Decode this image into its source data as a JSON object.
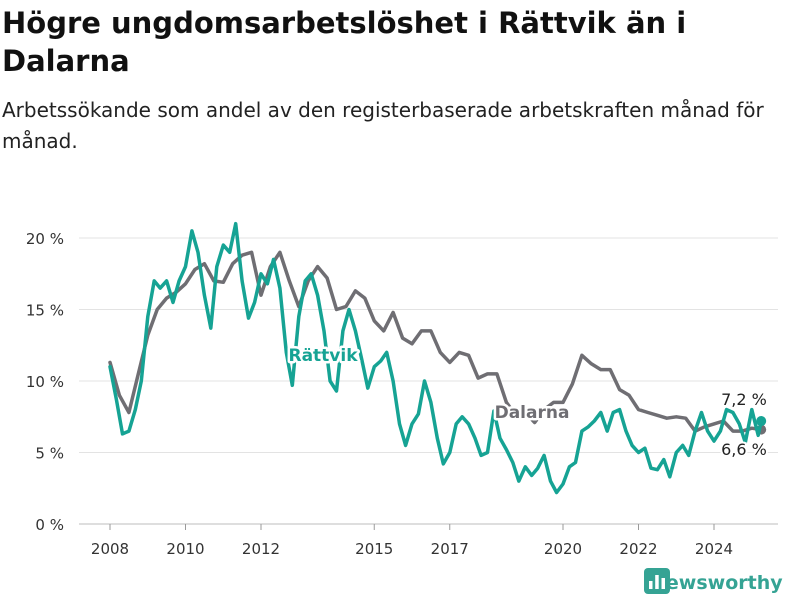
{
  "title": "Högre ungdomsarbetslöshet i Rättvik än i Dalarna",
  "subtitle": "Arbetssökande som andel av den registerbaserade arbetskraften månad för månad.",
  "brand": {
    "label": "Newsworthy",
    "icon": "bar-chart-logo-icon",
    "color": "#35a394"
  },
  "chart_data": {
    "type": "line",
    "xlim": [
      2007.58,
      2025.75
    ],
    "ylim": [
      0,
      20
    ],
    "y_ticks": [
      0,
      5,
      10,
      15,
      20
    ],
    "y_tick_labels": [
      "0 %",
      "5 %",
      "10 %",
      "15 %",
      "20 %"
    ],
    "x_ticks": [
      2008,
      2010,
      2012,
      2015,
      2017,
      2020,
      2022,
      2024
    ],
    "x_tick_labels": [
      "2008",
      "2010",
      "2012",
      "2015",
      "2017",
      "2020",
      "2022",
      "2024"
    ],
    "grid": true,
    "series": [
      {
        "name": "Dalarna",
        "color": "#6f6e73",
        "end_label": "6,6 %",
        "points": [
          [
            2008.0,
            11.3
          ],
          [
            2008.25,
            9.0
          ],
          [
            2008.5,
            7.8
          ],
          [
            2008.75,
            10.5
          ],
          [
            2009.0,
            13.2
          ],
          [
            2009.25,
            15.0
          ],
          [
            2009.5,
            15.8
          ],
          [
            2009.75,
            16.2
          ],
          [
            2010.0,
            16.8
          ],
          [
            2010.25,
            17.8
          ],
          [
            2010.5,
            18.2
          ],
          [
            2010.75,
            17.0
          ],
          [
            2011.0,
            16.9
          ],
          [
            2011.25,
            18.2
          ],
          [
            2011.5,
            18.8
          ],
          [
            2011.75,
            19.0
          ],
          [
            2012.0,
            16.0
          ],
          [
            2012.25,
            18.0
          ],
          [
            2012.5,
            19.0
          ],
          [
            2012.75,
            17.0
          ],
          [
            2013.0,
            15.2
          ],
          [
            2013.25,
            17.0
          ],
          [
            2013.5,
            18.0
          ],
          [
            2013.75,
            17.2
          ],
          [
            2014.0,
            15.0
          ],
          [
            2014.25,
            15.2
          ],
          [
            2014.5,
            16.3
          ],
          [
            2014.75,
            15.8
          ],
          [
            2015.0,
            14.2
          ],
          [
            2015.25,
            13.5
          ],
          [
            2015.5,
            14.8
          ],
          [
            2015.75,
            13.0
          ],
          [
            2016.0,
            12.6
          ],
          [
            2016.25,
            13.5
          ],
          [
            2016.5,
            13.5
          ],
          [
            2016.75,
            12.0
          ],
          [
            2017.0,
            11.3
          ],
          [
            2017.25,
            12.0
          ],
          [
            2017.5,
            11.8
          ],
          [
            2017.75,
            10.2
          ],
          [
            2018.0,
            10.5
          ],
          [
            2018.25,
            10.5
          ],
          [
            2018.5,
            8.5
          ],
          [
            2018.75,
            7.6
          ],
          [
            2019.0,
            7.8
          ],
          [
            2019.25,
            7.1
          ],
          [
            2019.5,
            8.0
          ],
          [
            2019.75,
            8.5
          ],
          [
            2020.0,
            8.5
          ],
          [
            2020.25,
            9.8
          ],
          [
            2020.5,
            11.8
          ],
          [
            2020.75,
            11.2
          ],
          [
            2021.0,
            10.8
          ],
          [
            2021.25,
            10.8
          ],
          [
            2021.5,
            9.4
          ],
          [
            2021.75,
            9.0
          ],
          [
            2022.0,
            8.0
          ],
          [
            2022.25,
            7.8
          ],
          [
            2022.5,
            7.6
          ],
          [
            2022.75,
            7.4
          ],
          [
            2023.0,
            7.5
          ],
          [
            2023.25,
            7.4
          ],
          [
            2023.5,
            6.5
          ],
          [
            2023.75,
            6.8
          ],
          [
            2024.0,
            7.0
          ],
          [
            2024.25,
            7.2
          ],
          [
            2024.5,
            6.5
          ],
          [
            2024.75,
            6.5
          ],
          [
            2025.0,
            6.7
          ],
          [
            2025.25,
            6.6
          ]
        ]
      },
      {
        "name": "Rättvik",
        "color": "#16a394",
        "end_label": "7,2 %",
        "points": [
          [
            2008.0,
            11.0
          ],
          [
            2008.17,
            8.7
          ],
          [
            2008.33,
            6.3
          ],
          [
            2008.5,
            6.5
          ],
          [
            2008.67,
            8.0
          ],
          [
            2008.83,
            10.0
          ],
          [
            2009.0,
            14.5
          ],
          [
            2009.17,
            17.0
          ],
          [
            2009.33,
            16.5
          ],
          [
            2009.5,
            17.0
          ],
          [
            2009.67,
            15.5
          ],
          [
            2009.83,
            17.0
          ],
          [
            2010.0,
            18.0
          ],
          [
            2010.17,
            20.5
          ],
          [
            2010.33,
            19.0
          ],
          [
            2010.5,
            16.0
          ],
          [
            2010.67,
            13.7
          ],
          [
            2010.83,
            18.0
          ],
          [
            2011.0,
            19.5
          ],
          [
            2011.17,
            19.0
          ],
          [
            2011.33,
            21.0
          ],
          [
            2011.5,
            17.0
          ],
          [
            2011.67,
            14.4
          ],
          [
            2011.83,
            15.5
          ],
          [
            2012.0,
            17.5
          ],
          [
            2012.17,
            16.8
          ],
          [
            2012.33,
            18.5
          ],
          [
            2012.5,
            16.5
          ],
          [
            2012.67,
            12.0
          ],
          [
            2012.83,
            9.7
          ],
          [
            2013.0,
            14.5
          ],
          [
            2013.17,
            17.0
          ],
          [
            2013.33,
            17.5
          ],
          [
            2013.5,
            16.0
          ],
          [
            2013.67,
            13.5
          ],
          [
            2013.83,
            10.0
          ],
          [
            2014.0,
            9.3
          ],
          [
            2014.17,
            13.5
          ],
          [
            2014.33,
            15.0
          ],
          [
            2014.5,
            13.5
          ],
          [
            2014.67,
            11.5
          ],
          [
            2014.83,
            9.5
          ],
          [
            2015.0,
            11.0
          ],
          [
            2015.17,
            11.4
          ],
          [
            2015.33,
            12.0
          ],
          [
            2015.5,
            10.0
          ],
          [
            2015.67,
            7.0
          ],
          [
            2015.83,
            5.5
          ],
          [
            2016.0,
            7.0
          ],
          [
            2016.17,
            7.7
          ],
          [
            2016.33,
            10.0
          ],
          [
            2016.5,
            8.5
          ],
          [
            2016.67,
            6.0
          ],
          [
            2016.83,
            4.2
          ],
          [
            2017.0,
            5.0
          ],
          [
            2017.17,
            7.0
          ],
          [
            2017.33,
            7.5
          ],
          [
            2017.5,
            7.0
          ],
          [
            2017.67,
            6.0
          ],
          [
            2017.83,
            4.8
          ],
          [
            2018.0,
            5.0
          ],
          [
            2018.17,
            7.9
          ],
          [
            2018.33,
            6.0
          ],
          [
            2018.5,
            5.2
          ],
          [
            2018.67,
            4.3
          ],
          [
            2018.83,
            3.0
          ],
          [
            2019.0,
            4.0
          ],
          [
            2019.17,
            3.4
          ],
          [
            2019.33,
            3.9
          ],
          [
            2019.5,
            4.8
          ],
          [
            2019.67,
            3.0
          ],
          [
            2019.83,
            2.2
          ],
          [
            2020.0,
            2.8
          ],
          [
            2020.17,
            4.0
          ],
          [
            2020.33,
            4.3
          ],
          [
            2020.5,
            6.5
          ],
          [
            2020.67,
            6.8
          ],
          [
            2020.83,
            7.2
          ],
          [
            2021.0,
            7.8
          ],
          [
            2021.17,
            6.5
          ],
          [
            2021.33,
            7.8
          ],
          [
            2021.5,
            8.0
          ],
          [
            2021.67,
            6.5
          ],
          [
            2021.83,
            5.5
          ],
          [
            2022.0,
            5.0
          ],
          [
            2022.17,
            5.3
          ],
          [
            2022.33,
            3.9
          ],
          [
            2022.5,
            3.8
          ],
          [
            2022.67,
            4.5
          ],
          [
            2022.83,
            3.3
          ],
          [
            2023.0,
            5.0
          ],
          [
            2023.17,
            5.5
          ],
          [
            2023.33,
            4.8
          ],
          [
            2023.5,
            6.5
          ],
          [
            2023.67,
            7.8
          ],
          [
            2023.83,
            6.5
          ],
          [
            2024.0,
            5.8
          ],
          [
            2024.17,
            6.5
          ],
          [
            2024.33,
            8.0
          ],
          [
            2024.5,
            7.8
          ],
          [
            2024.67,
            7.0
          ],
          [
            2024.83,
            5.7
          ],
          [
            2025.0,
            8.0
          ],
          [
            2025.17,
            6.2
          ],
          [
            2025.25,
            7.2
          ]
        ]
      }
    ]
  }
}
